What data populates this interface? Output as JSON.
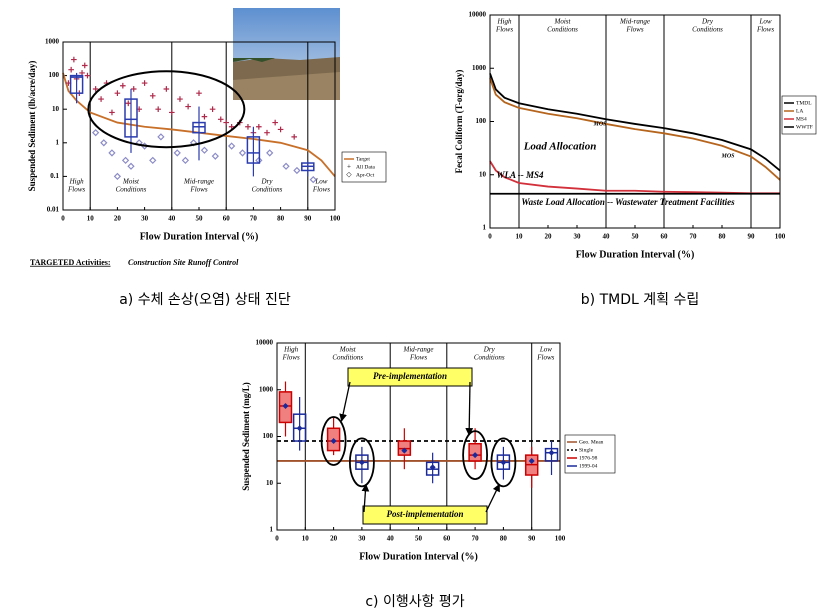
{
  "chart_data": [
    {
      "type": "box",
      "log_y": true,
      "ylabel": "Suspended Sediment (lb/acre/day)",
      "xlabel": "Flow Duration Interval (%)",
      "xlim": [
        0,
        100
      ],
      "xticks": [
        0,
        10,
        20,
        30,
        40,
        50,
        60,
        70,
        80,
        90,
        100
      ],
      "ylim": [
        0.01,
        1000
      ],
      "yticks": [
        0.01,
        0.1,
        1,
        10,
        100,
        1000
      ],
      "zones": [
        [
          "High",
          "Flows"
        ],
        [
          "Moist",
          "Conditions"
        ],
        [
          "Mid-range",
          "Flows"
        ],
        [
          "Dry",
          "Conditions"
        ],
        [
          "Low",
          "Flows"
        ]
      ],
      "zone_bounds": [
        10,
        40,
        60,
        90
      ],
      "series": [
        {
          "name": "Target",
          "kind": "line",
          "color": "#c8702a",
          "x": [
            0,
            2,
            5,
            10,
            20,
            30,
            40,
            50,
            60,
            70,
            80,
            90,
            95,
            100
          ],
          "values": [
            120,
            35,
            18,
            8,
            4,
            3,
            2.5,
            2,
            1.6,
            1.3,
            1,
            0.6,
            0.3,
            0.1
          ]
        },
        {
          "name": "All Data",
          "kind": "scatter",
          "marker": "cross",
          "color": "#b0284a",
          "x": [
            2,
            3,
            4,
            5,
            6,
            7,
            8,
            9,
            12,
            14,
            16,
            18,
            20,
            22,
            24,
            26,
            28,
            30,
            33,
            35,
            38,
            40,
            43,
            46,
            50,
            52,
            55,
            58,
            60,
            62,
            65,
            68,
            70,
            72,
            75,
            78,
            80,
            85
          ],
          "values": [
            60,
            150,
            300,
            80,
            30,
            120,
            200,
            100,
            40,
            20,
            60,
            8,
            30,
            50,
            15,
            40,
            10,
            60,
            25,
            10,
            40,
            8,
            20,
            12,
            30,
            6,
            10,
            5,
            4,
            3,
            4,
            3,
            2,
            3,
            2,
            4,
            2.5,
            1.5
          ]
        },
        {
          "name": "Apr-Oct",
          "kind": "scatter",
          "marker": "diamond",
          "color": "#8c8cc8",
          "x": [
            12,
            15,
            18,
            20,
            23,
            25,
            28,
            30,
            33,
            36,
            42,
            45,
            48,
            52,
            56,
            62,
            66,
            72,
            76,
            82,
            86,
            92
          ],
          "values": [
            2,
            1,
            0.5,
            0.1,
            0.3,
            0.2,
            1,
            0.8,
            0.3,
            1.5,
            0.5,
            0.3,
            1,
            0.6,
            0.4,
            0.8,
            0.5,
            0.3,
            0.5,
            0.2,
            0.15,
            0.08
          ]
        },
        {
          "kind": "box",
          "color": "#2a3cae",
          "fill": "none",
          "boxes": [
            {
              "x": 5,
              "min": 15,
              "q1": 30,
              "median": 90,
              "q3": 100,
              "max": 120
            },
            {
              "x": 25,
              "min": 0.5,
              "q1": 1.5,
              "median": 5,
              "q3": 20,
              "max": 40
            },
            {
              "x": 50,
              "min": 0.3,
              "q1": 2,
              "median": 3,
              "q3": 4,
              "max": 12
            },
            {
              "x": 70,
              "min": 0.1,
              "q1": 0.25,
              "median": 0.5,
              "q3": 1.5,
              "max": 3
            },
            {
              "x": 90,
              "min": 0.1,
              "q1": 0.15,
              "median": 0.2,
              "q3": 0.25,
              "max": 0.3
            }
          ]
        }
      ],
      "footnote": {
        "label": "TARGETED Activities:",
        "text": "Construction Site Runoff Control"
      },
      "caption": "a) 수체 손상(오염) 상태 진단"
    },
    {
      "type": "line",
      "log_y": true,
      "ylabel": "Fecal Coliform (T-org/day)",
      "xlabel": "Flow Duration Interval (%)",
      "xlim": [
        0,
        100
      ],
      "xticks": [
        0,
        10,
        20,
        30,
        40,
        50,
        60,
        70,
        80,
        90,
        100
      ],
      "ylim": [
        1,
        10000
      ],
      "yticks": [
        1,
        10,
        100,
        1000,
        10000
      ],
      "zones": [
        [
          "High",
          "Flows"
        ],
        [
          "Moist",
          "Conditions"
        ],
        [
          "Mid-range",
          "Flows"
        ],
        [
          "Dry",
          "Conditions"
        ],
        [
          "Low",
          "Flows"
        ]
      ],
      "zone_bounds": [
        10,
        40,
        60,
        90
      ],
      "series": [
        {
          "name": "TMDL",
          "kind": "line",
          "color": "#000000",
          "x": [
            0,
            2,
            5,
            10,
            20,
            30,
            40,
            50,
            60,
            70,
            80,
            90,
            95,
            100
          ],
          "values": [
            800,
            400,
            280,
            220,
            170,
            140,
            110,
            90,
            75,
            60,
            45,
            30,
            20,
            12
          ]
        },
        {
          "name": "LA",
          "kind": "line",
          "color": "#b5651d",
          "x": [
            0,
            2,
            5,
            10,
            20,
            30,
            40,
            50,
            60,
            70,
            80,
            90,
            95,
            100
          ],
          "values": [
            650,
            320,
            230,
            180,
            140,
            115,
            90,
            72,
            60,
            48,
            35,
            22,
            14,
            8
          ]
        },
        {
          "name": "MS4",
          "kind": "line",
          "color": "#d2303a",
          "x": [
            0,
            2,
            5,
            10,
            20,
            30,
            40,
            50,
            60,
            70,
            80,
            90,
            95,
            100
          ],
          "values": [
            18,
            12,
            9,
            7,
            6,
            5.5,
            5,
            5,
            4.8,
            4.7,
            4.6,
            4.5,
            4.5,
            4.5
          ]
        },
        {
          "name": "WWTF",
          "kind": "line",
          "color": "#000000",
          "x": [
            0,
            100
          ],
          "values": [
            4.4,
            4.4
          ]
        }
      ],
      "annotations": [
        "Load Allocation",
        "WLA -- MS4",
        "Waste Load Allocation -- Wastewater Treatment Facilities",
        "MOS",
        "MOS"
      ],
      "caption": "b) TMDL 계획 수립"
    },
    {
      "type": "box",
      "log_y": true,
      "ylabel": "Suspended Sediment (mg/L)",
      "xlabel": "Flow Duration Interval (%)",
      "xlim": [
        0,
        100
      ],
      "xticks": [
        0,
        10,
        20,
        30,
        40,
        50,
        60,
        70,
        80,
        90,
        100
      ],
      "ylim": [
        1,
        10000
      ],
      "yticks": [
        1,
        10,
        100,
        1000,
        10000
      ],
      "zones": [
        [
          "High",
          "Flows"
        ],
        [
          "Moist",
          "Conditions"
        ],
        [
          "Mid-range",
          "Flows"
        ],
        [
          "Dry",
          "Conditions"
        ],
        [
          "Low",
          "Flows"
        ]
      ],
      "zone_bounds": [
        10,
        40,
        60,
        90
      ],
      "series": [
        {
          "name": "Geo. Mean",
          "kind": "line",
          "color": "#a0522d",
          "x": [
            0,
            100
          ],
          "values": [
            30,
            30
          ]
        },
        {
          "name": "Single",
          "kind": "line",
          "dash": true,
          "color": "#000000",
          "x": [
            0,
            100
          ],
          "values": [
            80,
            80
          ]
        },
        {
          "name": "1976-98",
          "kind": "box",
          "color": "#cc0000",
          "fill": "#f08080",
          "boxes": [
            {
              "x": 3,
              "min": 100,
              "q1": 200,
              "median": 450,
              "q3": 900,
              "max": 1500,
              "mean": 450
            },
            {
              "x": 20,
              "min": 40,
              "q1": 50,
              "median": 80,
              "q3": 150,
              "max": 250,
              "mean": 80
            },
            {
              "x": 45,
              "min": 20,
              "q1": 40,
              "median": 55,
              "q3": 80,
              "max": 150,
              "mean": 50
            },
            {
              "x": 70,
              "min": 20,
              "q1": 30,
              "median": 40,
              "q3": 70,
              "max": 150,
              "mean": 40
            },
            {
              "x": 90,
              "min": 8,
              "q1": 15,
              "median": 25,
              "q3": 40,
              "max": 60,
              "mean": 30
            }
          ]
        },
        {
          "name": "1999-04",
          "kind": "box",
          "color": "#1a2a9a",
          "fill": "none",
          "boxes": [
            {
              "x": 8,
              "min": 50,
              "q1": 80,
              "median": 150,
              "q3": 300,
              "max": 700,
              "mean": 150
            },
            {
              "x": 30,
              "min": 10,
              "q1": 20,
              "median": 28,
              "q3": 40,
              "max": 60,
              "mean": 28
            },
            {
              "x": 55,
              "min": 10,
              "q1": 15,
              "median": 20,
              "q3": 28,
              "max": 45,
              "mean": 22
            },
            {
              "x": 80,
              "min": 12,
              "q1": 20,
              "median": 28,
              "q3": 40,
              "max": 60,
              "mean": 28
            },
            {
              "x": 97,
              "min": 15,
              "q1": 30,
              "median": 45,
              "q3": 55,
              "max": 80,
              "mean": 45
            }
          ]
        }
      ],
      "annotations": [
        "Pre-implementation",
        "Post-implementation"
      ],
      "caption": "c) 이행사항 평가"
    }
  ]
}
